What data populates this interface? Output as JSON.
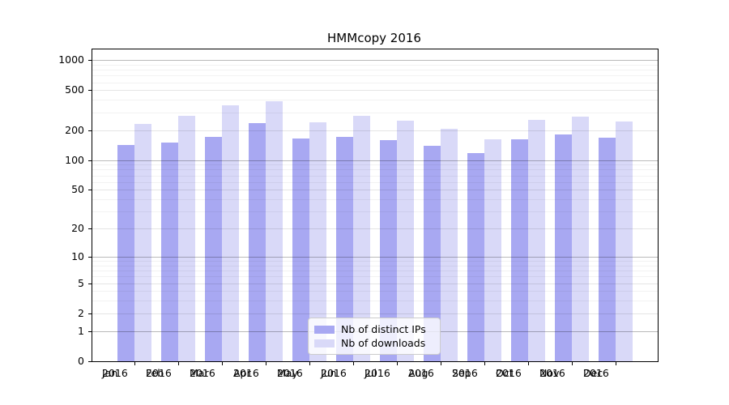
{
  "chart_data": {
    "type": "bar",
    "title": "HMMcopy 2016",
    "categories": [
      "Jan",
      "Feb",
      "Mar",
      "Apr",
      "May",
      "Jun",
      "Jul",
      "Aug",
      "Sep",
      "Oct",
      "Nov",
      "Dec"
    ],
    "year_label": "2016",
    "series": [
      {
        "name": "Nb of distinct IPs",
        "color": "#a8a8f2",
        "values": [
          143,
          150,
          170,
          235,
          165,
          171,
          158,
          139,
          118,
          163,
          180,
          168
        ]
      },
      {
        "name": "Nb of downloads",
        "color": "#d9d9f8",
        "values": [
          231,
          278,
          355,
          390,
          238,
          278,
          250,
          206,
          161,
          252,
          272,
          244
        ]
      }
    ],
    "y_scale": "log10(1+v)",
    "y_ticks": [
      0,
      1,
      2,
      5,
      10,
      20,
      50,
      100,
      200,
      500,
      1000
    ],
    "y_minor_ticks": [
      3,
      4,
      6,
      7,
      8,
      9,
      30,
      40,
      60,
      70,
      80,
      90,
      300,
      400,
      600,
      700,
      800,
      900
    ],
    "ylim": [
      0,
      1277
    ],
    "grid": true,
    "legend_position": "bottom-center",
    "colors": {
      "axis": "#000000",
      "grid_major": "rgba(0,0,0,0.27)",
      "grid_mid": "rgba(0,0,0,0.10)",
      "grid_minor": "rgba(0,0,0,0.05)",
      "legend_border": "#cccccc"
    }
  }
}
